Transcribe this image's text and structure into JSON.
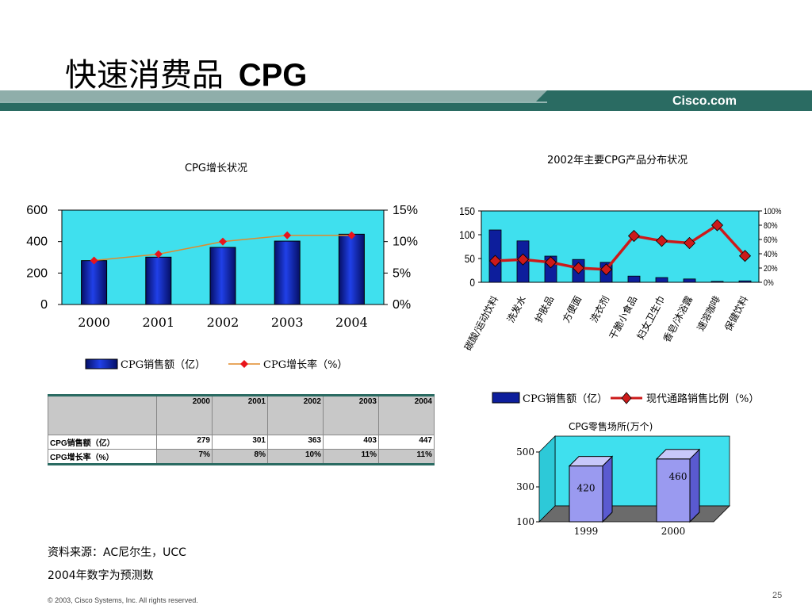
{
  "slide": {
    "title_cn": "快速消费品",
    "title_en": "CPG",
    "logo": "Cisco.com",
    "copyright": "© 2003, Cisco Systems, Inc. All rights reserved.",
    "page_number": "25",
    "source_note": "资料来源：AC尼尔生，UCC",
    "forecast_note": "2004年数字为预测数",
    "colors": {
      "bar": "#0d1e9c",
      "bar_light": "#2040e8",
      "line1": "#e08a2a",
      "line2": "#cc1a1a",
      "teal": "#2a6b62",
      "cyan_plot": "#3fe0ee",
      "plot_bg": "#39c4e6"
    }
  },
  "chart_data": [
    {
      "type": "bar",
      "title": "CPG增长状况",
      "categories": [
        "2000",
        "2001",
        "2002",
        "2003",
        "2004"
      ],
      "series": [
        {
          "name": "CPG销售额（亿）",
          "type": "bar",
          "axis": "left",
          "values": [
            279,
            301,
            363,
            403,
            447
          ]
        },
        {
          "name": "CPG增长率（%）",
          "type": "line",
          "axis": "right",
          "values": [
            7,
            8,
            10,
            11,
            11
          ]
        }
      ],
      "y_ticks": [
        "600",
        "400",
        "200",
        "0"
      ],
      "y2_ticks": [
        "15%",
        "10%",
        "5%",
        "0%"
      ],
      "ylim": [
        0,
        600
      ],
      "y2lim": [
        0,
        15
      ]
    },
    {
      "type": "bar",
      "title": "2002年主要CPG产品分布状况",
      "categories": [
        "碳酸/运动饮料",
        "洗发水",
        "护肤品",
        "方便面",
        "洗衣剂",
        "干脆小食品",
        "妇女卫生巾",
        "香皂/沐浴露",
        "速溶咖啡",
        "保健饮料"
      ],
      "series": [
        {
          "name": "CPG销售额（亿）",
          "type": "bar",
          "axis": "left",
          "values": [
            110,
            87,
            55,
            48,
            42,
            13,
            10,
            7,
            2,
            3
          ]
        },
        {
          "name": "现代通路销售比例（%）",
          "type": "line",
          "axis": "right",
          "values": [
            30,
            32,
            28,
            20,
            18,
            65,
            58,
            55,
            80,
            37
          ]
        }
      ],
      "y_ticks": [
        "150",
        "100",
        "50",
        "0"
      ],
      "y2_ticks": [
        "100%",
        "80%",
        "60%",
        "40%",
        "20%",
        "0%"
      ],
      "ylim": [
        0,
        150
      ],
      "y2lim": [
        0,
        100
      ]
    },
    {
      "type": "bar",
      "title": "CPG零售场所(万个)",
      "categories": [
        "1999",
        "2000"
      ],
      "values": [
        420,
        460
      ],
      "y_ticks": [
        "500",
        "300",
        "100"
      ],
      "ylim": [
        100,
        500
      ],
      "data_labels": [
        "420",
        "460"
      ]
    }
  ],
  "table": {
    "header": [
      "",
      "2000",
      "2001",
      "2002",
      "2003",
      "2004"
    ],
    "rows": [
      {
        "label": "CPG销售额（亿）",
        "cells": [
          "279",
          "301",
          "363",
          "403",
          "447"
        ]
      },
      {
        "label": "CPG增长率（%）",
        "cells": [
          "7%",
          "8%",
          "10%",
          "11%",
          "11%"
        ]
      }
    ]
  }
}
